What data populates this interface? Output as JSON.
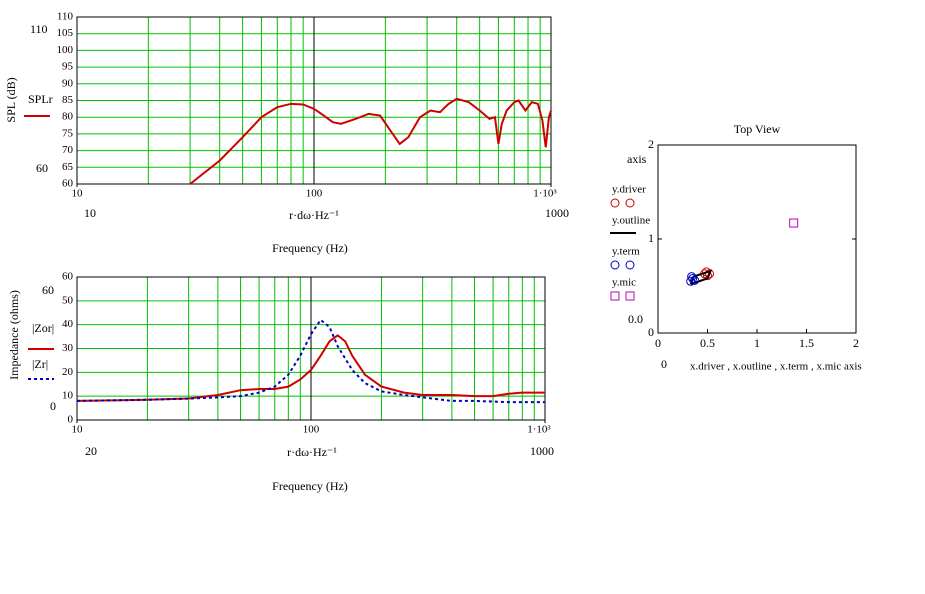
{
  "chart_data": [
    {
      "type": "line",
      "xscale": "log",
      "xlim": [
        10,
        1000
      ],
      "ylim": [
        60,
        110
      ],
      "xticks": [
        10,
        100,
        {
          "value": 1000,
          "label": "1·10³"
        }
      ],
      "yticks": [
        60,
        65,
        70,
        75,
        80,
        85,
        90,
        95,
        100,
        105,
        110
      ],
      "grid": true,
      "grid_color": "#00c000",
      "ylim_labels": [
        "110",
        "60"
      ],
      "xlim_labels": [
        "10",
        "1000"
      ],
      "x_expression": "r·dω·Hz⁻¹",
      "xlabel": "Frequency (Hz)",
      "ylabel": "SPL (dB)",
      "series": [
        {
          "name": "SPLr",
          "color": "#d00000",
          "x": [
            30,
            40,
            50,
            60,
            70,
            80,
            90,
            100,
            110,
            120,
            130,
            150,
            170,
            190,
            210,
            230,
            250,
            280,
            310,
            340,
            370,
            400,
            450,
            500,
            550,
            580,
            600,
            620,
            650,
            700,
            730,
            780,
            830,
            880,
            920,
            950,
            980,
            1000
          ],
          "values": [
            60,
            67,
            74,
            80,
            83,
            84,
            83.8,
            82.5,
            80.5,
            78.5,
            78,
            79.5,
            81,
            80.5,
            76,
            72,
            74,
            80,
            82,
            81.5,
            84,
            85.5,
            84.5,
            82,
            79.5,
            80,
            72,
            78,
            82,
            84.5,
            85,
            82,
            84.5,
            84,
            79,
            71,
            80,
            82
          ]
        }
      ]
    },
    {
      "type": "line",
      "xscale": "log",
      "xlim": [
        10,
        1000
      ],
      "ylim": [
        0,
        60
      ],
      "xticks": [
        10,
        100,
        {
          "value": 1000,
          "label": "1·10³"
        }
      ],
      "yticks": [
        0,
        10,
        20,
        30,
        40,
        50,
        60
      ],
      "grid": true,
      "grid_color": "#00c000",
      "ylim_labels": [
        "60",
        "0"
      ],
      "xlim_labels": [
        "20",
        "1000"
      ],
      "x_expression": "r·dω·Hz⁻¹",
      "xlabel": "Frequency (Hz)",
      "ylabel": "Impedance (ohms)",
      "series": [
        {
          "name": "|Zor|",
          "color": "#d00000",
          "x": [
            10,
            20,
            30,
            40,
            50,
            60,
            70,
            80,
            90,
            100,
            110,
            120,
            130,
            140,
            150,
            170,
            200,
            250,
            300,
            400,
            500,
            600,
            700,
            800,
            900,
            1000
          ],
          "values": [
            8,
            8.5,
            9,
            10.5,
            12.5,
            13,
            13,
            14,
            17,
            21,
            27,
            33,
            35.5,
            33,
            27,
            19,
            14,
            11.5,
            10.5,
            10.5,
            10,
            10,
            11,
            11.5,
            11.5,
            11.5
          ]
        },
        {
          "name": "|Zr|",
          "color": "#0000c0",
          "dash": true,
          "x": [
            10,
            20,
            30,
            40,
            50,
            60,
            70,
            80,
            90,
            100,
            110,
            120,
            130,
            150,
            170,
            200,
            250,
            300,
            400,
            500,
            700,
            1000
          ],
          "values": [
            8,
            8.5,
            9,
            9.5,
            10,
            11.5,
            14,
            19,
            27,
            36,
            42,
            39,
            31,
            21,
            15.5,
            12,
            10.5,
            9.5,
            8,
            8,
            7.5,
            7.5
          ]
        }
      ]
    },
    {
      "type": "scatter",
      "title": "Top View",
      "xlim": [
        0,
        2
      ],
      "ylim": [
        0,
        2
      ],
      "xticks": [
        0,
        0.5,
        1,
        1.5,
        2
      ],
      "yticks": [
        0,
        1,
        2
      ],
      "ylabel": "axis",
      "ylim_label": "0.0",
      "xlim_label": "0",
      "xlabel": "x.driver , x.outline , x.term , x.mic   axis",
      "series": [
        {
          "name": "y.driver",
          "color": "#d00000",
          "marker": "circle",
          "x": [
            0.47,
            0.5,
            0.52,
            0.49
          ],
          "values": [
            0.63,
            0.61,
            0.63,
            0.65
          ]
        },
        {
          "name": "y.outline",
          "color": "#000000",
          "marker": "line",
          "x": [
            0.33,
            0.5,
            0.53,
            0.36,
            0.33
          ],
          "values": [
            0.52,
            0.58,
            0.66,
            0.6,
            0.52
          ]
        },
        {
          "name": "y.term",
          "color": "#0000c0",
          "marker": "circle",
          "x": [
            0.33,
            0.35,
            0.37,
            0.34
          ],
          "values": [
            0.55,
            0.58,
            0.56,
            0.6
          ]
        },
        {
          "name": "y.mic",
          "color": "#c000c0",
          "marker": "square",
          "x": [
            1.37
          ],
          "values": [
            1.17
          ]
        }
      ]
    }
  ]
}
